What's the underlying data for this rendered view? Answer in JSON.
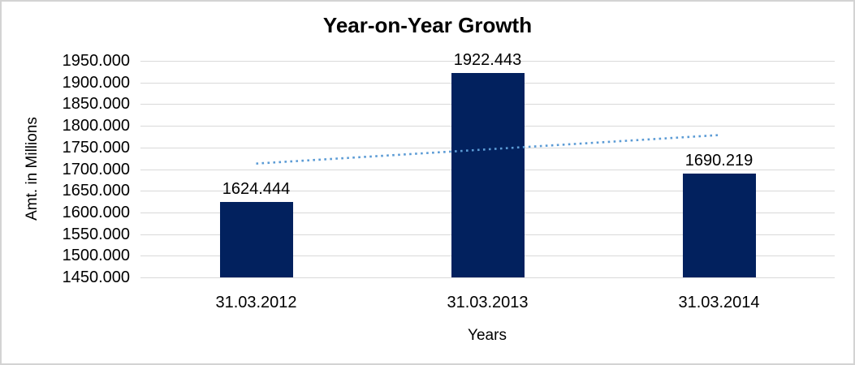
{
  "chart_data": {
    "type": "bar",
    "title": "Year-on-Year Growth",
    "xlabel": "Years",
    "ylabel": "Amt. in Millions",
    "categories": [
      "31.03.2012",
      "31.03.2013",
      "31.03.2014"
    ],
    "values": [
      1624.444,
      1922.443,
      1690.219
    ],
    "data_labels": [
      "1624.444",
      "1922.443",
      "1690.219"
    ],
    "ylim": [
      1450,
      1950
    ],
    "ytick_step": 50,
    "ytick_labels": [
      "1950.000",
      "1900.000",
      "1850.000",
      "1800.000",
      "1750.000",
      "1700.000",
      "1650.000",
      "1600.000",
      "1550.000",
      "1500.000",
      "1450.000"
    ],
    "grid": true,
    "legend_position": "none",
    "bar_color": "#02215E",
    "gridline_color": "#d9d9d9",
    "trendline": {
      "type": "linear",
      "style": "dotted",
      "color": "#5B9BD5",
      "start_value": 1712.8,
      "end_value": 1778.6
    }
  }
}
